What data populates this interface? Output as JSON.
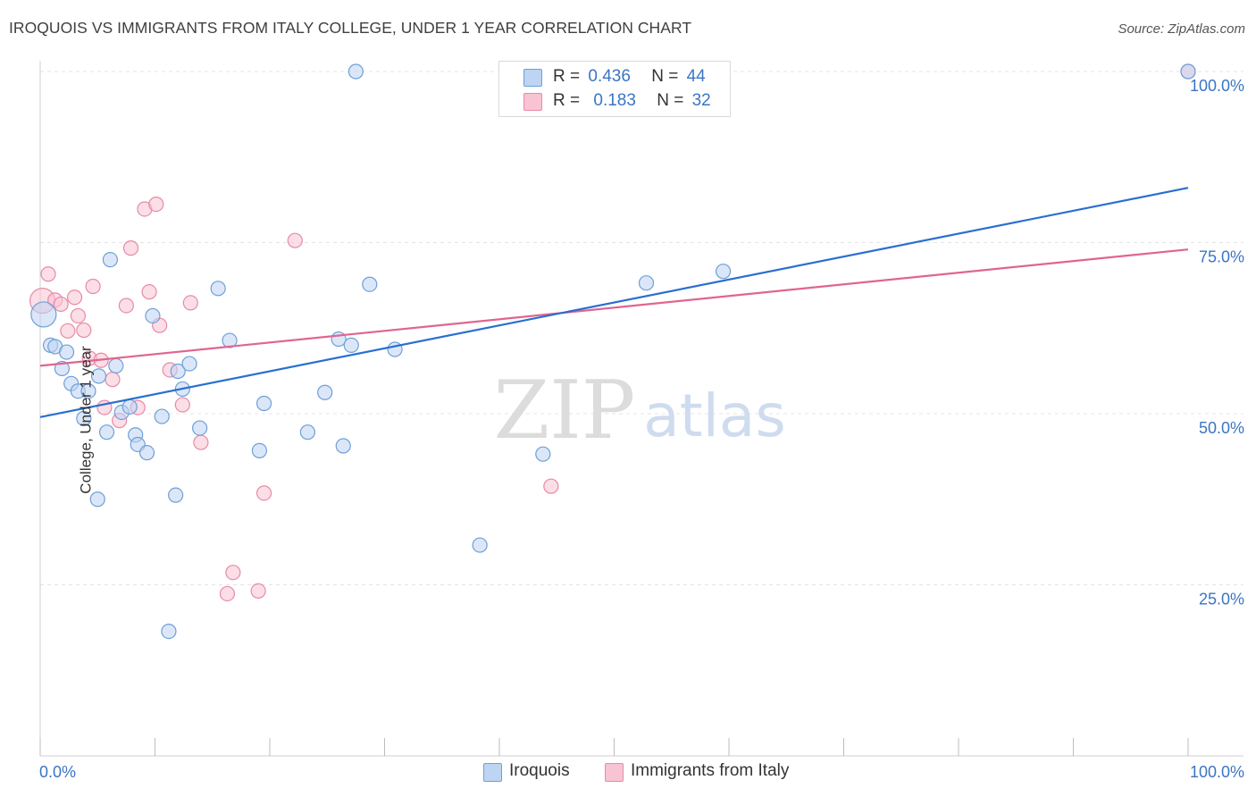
{
  "title": "IROQUOIS VS IMMIGRANTS FROM ITALY COLLEGE, UNDER 1 YEAR CORRELATION CHART",
  "source": "Source: ZipAtlas.com",
  "watermark": {
    "zip": "ZIP",
    "atlas": "atlas"
  },
  "colors": {
    "iroquois_fill": "#bdd4f3",
    "iroquois_stroke": "#6e9fd8",
    "iroquois_line": "#2a6fcf",
    "italy_fill": "#f8c3d2",
    "italy_stroke": "#e88aa8",
    "italy_line": "#e0658f",
    "value_text": "#3a75c4",
    "grid": "#e4e4e4"
  },
  "legend_top": {
    "rows": [
      {
        "r_label": "R =",
        "r_value": "0.436",
        "n_label": "N =",
        "n_value": "44"
      },
      {
        "r_label": "R =",
        "r_value": "0.183",
        "n_label": "N =",
        "n_value": "32"
      }
    ]
  },
  "legend_bottom": [
    "Iroquois",
    "Immigrants from Italy"
  ],
  "chart_data": {
    "type": "scatter",
    "title": "IROQUOIS VS IMMIGRANTS FROM ITALY COLLEGE, UNDER 1 YEAR CORRELATION CHART",
    "xlabel": "",
    "ylabel": "College, Under 1 year",
    "xlim": [
      0,
      100
    ],
    "ylim": [
      0,
      100
    ],
    "x_tick_labels": [
      "0.0%",
      "100.0%"
    ],
    "y_tick_labels": [
      "25.0%",
      "50.0%",
      "75.0%",
      "100.0%"
    ],
    "y_gridlines": [
      25,
      50,
      75,
      100
    ],
    "grid": true,
    "legend_position": "top-center",
    "series": [
      {
        "name": "Iroquois",
        "trend": {
          "x": [
            0,
            100
          ],
          "y": [
            49.5,
            83.0
          ]
        },
        "points": [
          {
            "x": 0.3,
            "y": 64.5,
            "big": true
          },
          {
            "x": 0.9,
            "y": 60.0
          },
          {
            "x": 1.3,
            "y": 59.8
          },
          {
            "x": 1.9,
            "y": 56.6
          },
          {
            "x": 2.3,
            "y": 59.0
          },
          {
            "x": 2.7,
            "y": 54.4
          },
          {
            "x": 3.3,
            "y": 53.3
          },
          {
            "x": 3.8,
            "y": 49.3
          },
          {
            "x": 4.2,
            "y": 53.3
          },
          {
            "x": 5.0,
            "y": 37.5
          },
          {
            "x": 5.1,
            "y": 55.5
          },
          {
            "x": 5.8,
            "y": 47.3
          },
          {
            "x": 6.1,
            "y": 72.5
          },
          {
            "x": 6.6,
            "y": 57.0
          },
          {
            "x": 7.1,
            "y": 50.2
          },
          {
            "x": 7.8,
            "y": 51.0
          },
          {
            "x": 8.3,
            "y": 46.9
          },
          {
            "x": 8.5,
            "y": 45.5
          },
          {
            "x": 9.3,
            "y": 44.3
          },
          {
            "x": 9.8,
            "y": 64.3
          },
          {
            "x": 10.6,
            "y": 49.6
          },
          {
            "x": 11.2,
            "y": 18.2
          },
          {
            "x": 11.8,
            "y": 38.1
          },
          {
            "x": 12.0,
            "y": 56.2
          },
          {
            "x": 12.4,
            "y": 53.6
          },
          {
            "x": 13.0,
            "y": 57.3
          },
          {
            "x": 13.9,
            "y": 47.9
          },
          {
            "x": 15.5,
            "y": 68.3
          },
          {
            "x": 16.5,
            "y": 60.7
          },
          {
            "x": 19.1,
            "y": 44.6
          },
          {
            "x": 19.5,
            "y": 51.5
          },
          {
            "x": 23.3,
            "y": 47.3
          },
          {
            "x": 24.8,
            "y": 53.1
          },
          {
            "x": 26.0,
            "y": 60.9
          },
          {
            "x": 26.4,
            "y": 45.3
          },
          {
            "x": 27.1,
            "y": 60.0
          },
          {
            "x": 27.5,
            "y": 100.0
          },
          {
            "x": 28.7,
            "y": 68.9
          },
          {
            "x": 30.9,
            "y": 59.4
          },
          {
            "x": 38.3,
            "y": 30.8
          },
          {
            "x": 43.8,
            "y": 44.1
          },
          {
            "x": 52.8,
            "y": 69.1
          },
          {
            "x": 59.5,
            "y": 70.8
          },
          {
            "x": 100.0,
            "y": 100.0
          }
        ]
      },
      {
        "name": "Immigrants from Italy",
        "trend": {
          "x": [
            0,
            100
          ],
          "y": [
            57.0,
            74.0
          ]
        },
        "points": [
          {
            "x": 0.2,
            "y": 66.5,
            "big": true
          },
          {
            "x": 0.7,
            "y": 70.4
          },
          {
            "x": 1.3,
            "y": 66.6
          },
          {
            "x": 1.8,
            "y": 66.0
          },
          {
            "x": 2.4,
            "y": 62.1
          },
          {
            "x": 3.0,
            "y": 67.0
          },
          {
            "x": 3.3,
            "y": 64.3
          },
          {
            "x": 3.8,
            "y": 62.2
          },
          {
            "x": 4.3,
            "y": 58.1
          },
          {
            "x": 4.6,
            "y": 68.6
          },
          {
            "x": 5.3,
            "y": 57.8
          },
          {
            "x": 5.6,
            "y": 50.9
          },
          {
            "x": 6.3,
            "y": 55.0
          },
          {
            "x": 6.9,
            "y": 49.0
          },
          {
            "x": 7.5,
            "y": 65.8
          },
          {
            "x": 7.9,
            "y": 74.2
          },
          {
            "x": 8.5,
            "y": 50.9
          },
          {
            "x": 9.1,
            "y": 79.9
          },
          {
            "x": 9.5,
            "y": 67.8
          },
          {
            "x": 10.1,
            "y": 80.6
          },
          {
            "x": 10.4,
            "y": 62.9
          },
          {
            "x": 11.3,
            "y": 56.4
          },
          {
            "x": 12.4,
            "y": 51.3
          },
          {
            "x": 13.1,
            "y": 66.2
          },
          {
            "x": 14.0,
            "y": 45.8
          },
          {
            "x": 16.3,
            "y": 23.7
          },
          {
            "x": 16.8,
            "y": 26.8
          },
          {
            "x": 19.0,
            "y": 24.1
          },
          {
            "x": 19.5,
            "y": 38.4
          },
          {
            "x": 22.2,
            "y": 75.3
          },
          {
            "x": 44.5,
            "y": 39.4
          },
          {
            "x": 100.0,
            "y": 100.0
          }
        ]
      }
    ]
  }
}
